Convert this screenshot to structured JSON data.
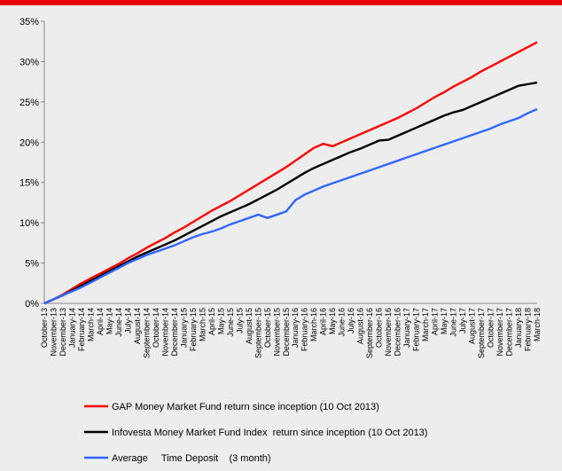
{
  "chart_data": {
    "type": "line",
    "categories": [
      "October-13",
      "November-13",
      "December-13",
      "January-14",
      "February-14",
      "March-14",
      "April-14",
      "May-14",
      "June-14",
      "July-14",
      "August-14",
      "September-14",
      "October-14",
      "November-14",
      "December-14",
      "January-15",
      "February-15",
      "March-15",
      "April-15",
      "May-15",
      "June-15",
      "July-15",
      "August-15",
      "September-15",
      "October-15",
      "November-15",
      "December-15",
      "January-16",
      "February-16",
      "March-16",
      "April-16",
      "May-16",
      "June-16",
      "July-16",
      "August-16",
      "September-16",
      "October-16",
      "November-16",
      "December-16",
      "January-17",
      "February-17",
      "March-17",
      "April-17",
      "May-17",
      "June-17",
      "July-17",
      "August-17",
      "September-17",
      "October-17",
      "November-17",
      "December-17",
      "January-18",
      "February-18",
      "March-18"
    ],
    "series": [
      {
        "name": "GAP Money Market Fund return since inception (10 Oct 2013)",
        "color": "#ff0000",
        "values": [
          0,
          0.5,
          1.1,
          1.8,
          2.5,
          3.1,
          3.7,
          4.3,
          4.9,
          5.6,
          6.2,
          6.9,
          7.5,
          8.1,
          8.8,
          9.4,
          10.1,
          10.8,
          11.5,
          12.1,
          12.7,
          13.4,
          14.1,
          14.8,
          15.5,
          16.2,
          16.9,
          17.7,
          18.5,
          19.3,
          19.8,
          19.5,
          20.0,
          20.5,
          21.0,
          21.5,
          22.0,
          22.5,
          23.0,
          23.6,
          24.2,
          24.9,
          25.6,
          26.2,
          26.9,
          27.5,
          28.1,
          28.8,
          29.4,
          30.0,
          30.6,
          31.2,
          31.8,
          32.4
        ]
      },
      {
        "name": "Infovesta Money Market Fund Index  return since inception (10 Oct 2013)",
        "color": "#000000",
        "values": [
          0,
          0.5,
          1.0,
          1.6,
          2.2,
          2.8,
          3.4,
          4.0,
          4.6,
          5.2,
          5.8,
          6.3,
          6.8,
          7.3,
          7.8,
          8.4,
          9.0,
          9.6,
          10.2,
          10.8,
          11.3,
          11.8,
          12.3,
          12.9,
          13.5,
          14.1,
          14.8,
          15.5,
          16.2,
          16.8,
          17.3,
          17.8,
          18.3,
          18.8,
          19.2,
          19.7,
          20.2,
          20.3,
          20.8,
          21.3,
          21.8,
          22.3,
          22.8,
          23.3,
          23.7,
          24.0,
          24.5,
          25.0,
          25.5,
          26.0,
          26.5,
          27.0,
          27.2,
          27.4
        ]
      },
      {
        "name": "Average     Time Deposit    (3 month)",
        "color": "#3366ff",
        "values": [
          0,
          0.5,
          1.0,
          1.5,
          2.0,
          2.6,
          3.2,
          3.8,
          4.4,
          5.0,
          5.5,
          6.0,
          6.4,
          6.8,
          7.2,
          7.7,
          8.2,
          8.6,
          8.9,
          9.3,
          9.8,
          10.2,
          10.6,
          11.0,
          10.6,
          11.0,
          11.4,
          12.8,
          13.5,
          14.0,
          14.5,
          14.9,
          15.3,
          15.7,
          16.1,
          16.5,
          16.9,
          17.3,
          17.7,
          18.1,
          18.5,
          18.9,
          19.3,
          19.7,
          20.1,
          20.5,
          20.9,
          21.3,
          21.7,
          22.2,
          22.6,
          23.0,
          23.6,
          24.1
        ]
      }
    ],
    "ylim": [
      0,
      35
    ],
    "yticks": [
      {
        "value": 0,
        "label": "0%"
      },
      {
        "value": 5,
        "label": "5%"
      },
      {
        "value": 10,
        "label": "10%"
      },
      {
        "value": 15,
        "label": "15%"
      },
      {
        "value": 20,
        "label": "20%"
      },
      {
        "value": 25,
        "label": "25%"
      },
      {
        "value": 30,
        "label": "30%"
      },
      {
        "value": 35,
        "label": "35%"
      }
    ],
    "grid": false
  }
}
